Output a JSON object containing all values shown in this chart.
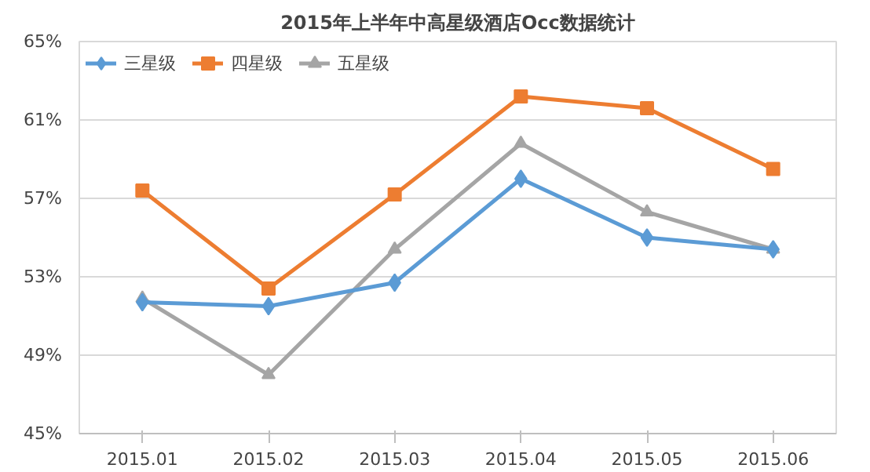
{
  "chart_data": {
    "type": "line",
    "title": "2015年上半年中高星级酒店Occ数据统计",
    "categories": [
      "2015.01",
      "2015.02",
      "2015.03",
      "2015.04",
      "2015.05",
      "2015.06"
    ],
    "series": [
      {
        "name": "三星级",
        "color": "#5b9bd5",
        "marker": "diamond",
        "values": [
          51.7,
          51.5,
          52.7,
          58.0,
          55.0,
          54.4
        ]
      },
      {
        "name": "四星级",
        "color": "#ed7d31",
        "marker": "square",
        "values": [
          57.4,
          52.4,
          57.2,
          62.2,
          61.6,
          58.5
        ]
      },
      {
        "name": "五星级",
        "color": "#a5a5a5",
        "marker": "triangle",
        "values": [
          51.9,
          48.0,
          54.4,
          59.8,
          56.3,
          54.4
        ]
      }
    ],
    "ylim": [
      45,
      65
    ],
    "yticks": [
      {
        "value": 45,
        "label": "45%"
      },
      {
        "value": 49,
        "label": "49%"
      },
      {
        "value": 53,
        "label": "53%"
      },
      {
        "value": 57,
        "label": "57%"
      },
      {
        "value": 61,
        "label": "61%"
      },
      {
        "value": 65,
        "label": "65%"
      }
    ],
    "grid": "y",
    "legend": "top left",
    "line_style": "solid"
  }
}
